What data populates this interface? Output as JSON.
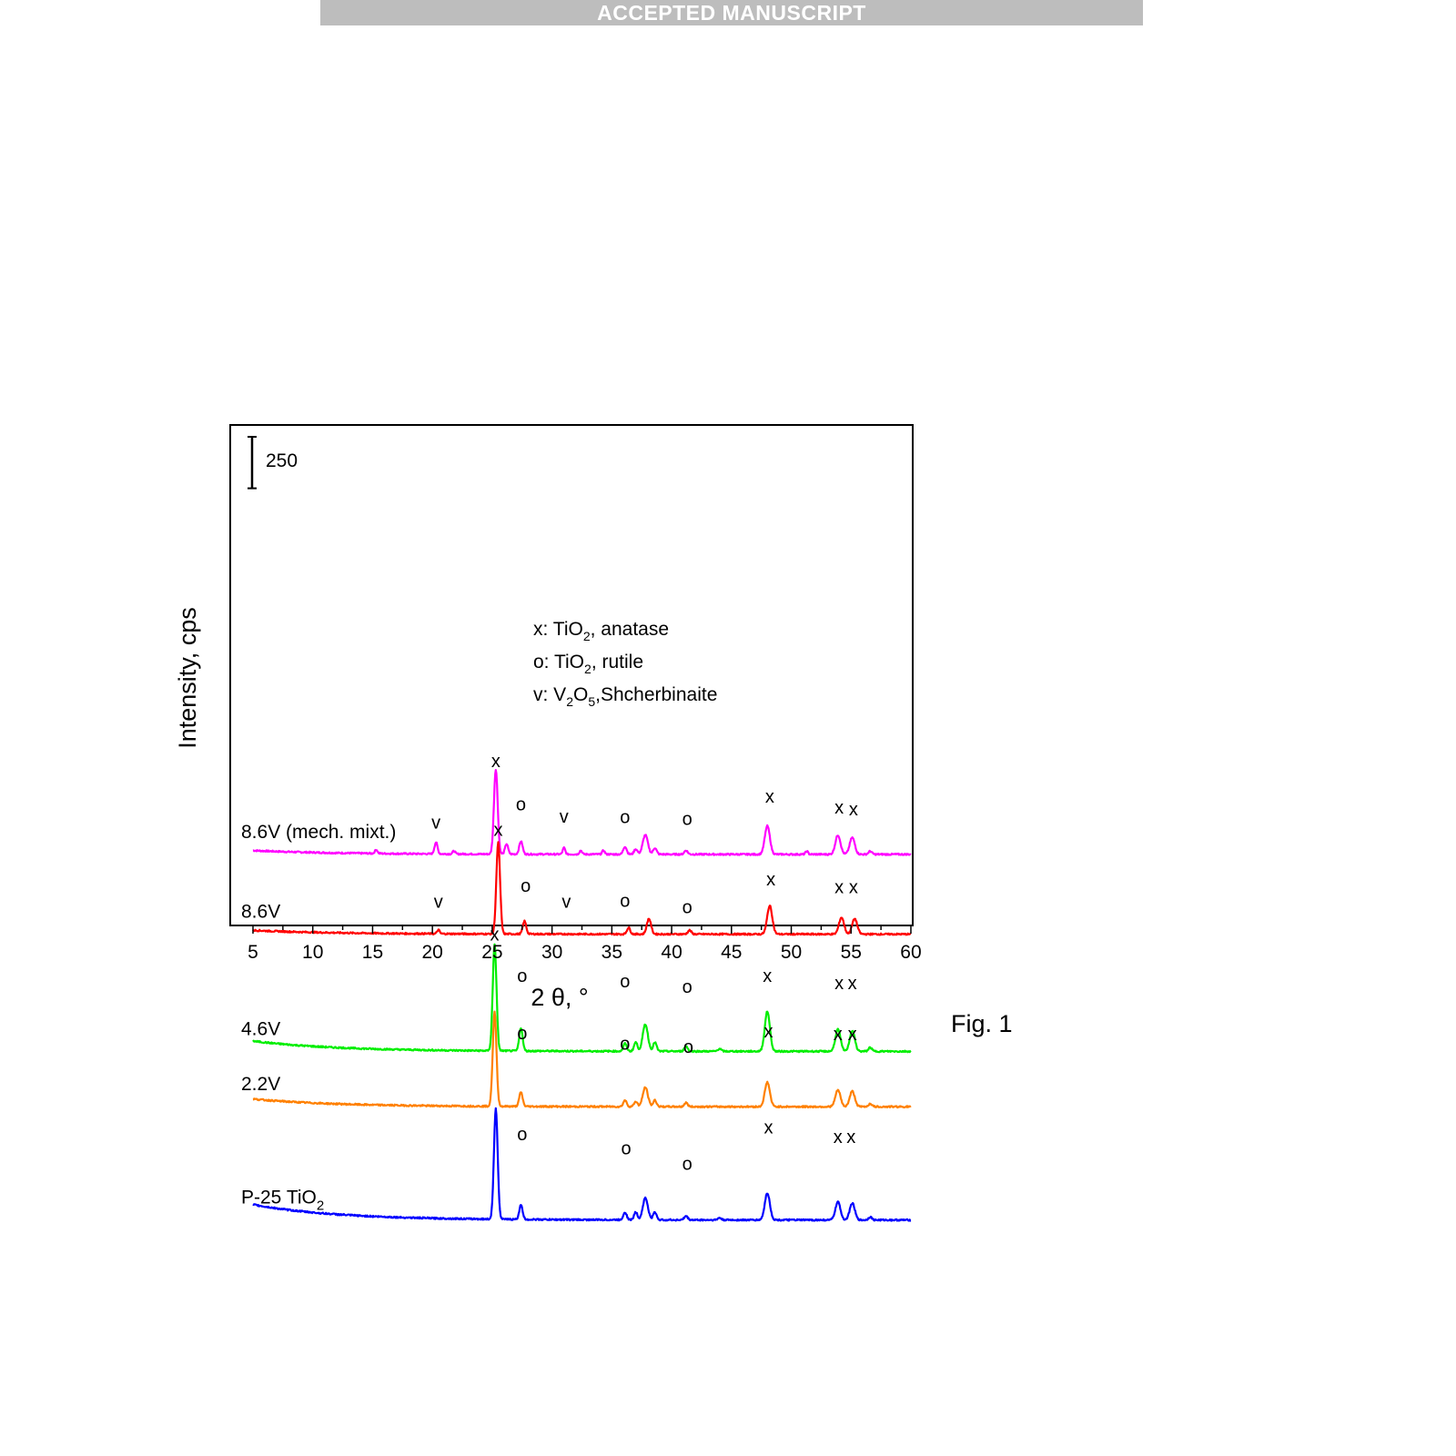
{
  "banner": "ACCEPTED MANUSCRIPT",
  "figure_caption": "Fig. 1",
  "chart_data": {
    "type": "line",
    "title": "",
    "xlabel": "2 θ, °",
    "ylabel": "Intensity, cps",
    "xlim": [
      3,
      60
    ],
    "xticks": [
      5,
      10,
      15,
      20,
      25,
      30,
      35,
      40,
      45,
      50,
      55,
      60
    ],
    "scale_bar": {
      "label": "250",
      "value": 250
    },
    "legend": [
      {
        "symbol": "x",
        "text": "TiO",
        "sub": "2",
        "rest": ", anatase"
      },
      {
        "symbol": "o",
        "text": "TiO",
        "sub": "2",
        "rest": ", rutile"
      },
      {
        "symbol": "v",
        "text": "V",
        "sub": "2",
        "mid": "O",
        "sub2": "5",
        "rest": ",Shcherbinaite"
      }
    ],
    "series": [
      {
        "name": "8.6V (mech. mixt.)",
        "color": "#ff00ff",
        "baseline": 255,
        "bg": 15,
        "peaks": [
          [
            15.3,
            15,
            0.15
          ],
          [
            20.3,
            45,
            0.18
          ],
          [
            21.8,
            12,
            0.15
          ],
          [
            25.3,
            330,
            0.22
          ],
          [
            26.2,
            40,
            0.18
          ],
          [
            27.4,
            50,
            0.2
          ],
          [
            31.0,
            25,
            0.15
          ],
          [
            32.4,
            15,
            0.15
          ],
          [
            34.3,
            15,
            0.15
          ],
          [
            36.1,
            30,
            0.2
          ],
          [
            37.0,
            20,
            0.2
          ],
          [
            37.8,
            75,
            0.3
          ],
          [
            38.6,
            25,
            0.2
          ],
          [
            41.2,
            15,
            0.2
          ],
          [
            48.0,
            110,
            0.3
          ],
          [
            51.3,
            12,
            0.15
          ],
          [
            53.9,
            75,
            0.3
          ],
          [
            55.1,
            65,
            0.3
          ],
          [
            56.6,
            12,
            0.2
          ]
        ],
        "markers": [
          [
            "v",
            20.3,
            355
          ],
          [
            "x",
            25.3,
            593
          ],
          [
            "o",
            27.4,
            425
          ],
          [
            "v",
            31.0,
            378
          ],
          [
            "o",
            36.1,
            377
          ],
          [
            "o",
            41.3,
            370
          ],
          [
            "x",
            48.2,
            455
          ],
          [
            "x",
            54.0,
            414
          ],
          [
            "x",
            55.2,
            407
          ]
        ]
      },
      {
        "name": "8.6V",
        "color": "#ff0000",
        "baseline": -55,
        "bg": 15,
        "peaks": [
          [
            20.5,
            15,
            0.15
          ],
          [
            25.5,
            355,
            0.22
          ],
          [
            27.7,
            50,
            0.2
          ],
          [
            36.4,
            25,
            0.2
          ],
          [
            38.1,
            60,
            0.25
          ],
          [
            41.5,
            15,
            0.2
          ],
          [
            48.2,
            110,
            0.3
          ],
          [
            54.2,
            65,
            0.3
          ],
          [
            55.3,
            60,
            0.3
          ]
        ],
        "markers": [
          [
            "v",
            20.5,
            47
          ],
          [
            "x",
            25.5,
            327
          ],
          [
            "o",
            27.8,
            110
          ],
          [
            "v",
            31.2,
            47
          ],
          [
            "o",
            36.1,
            52
          ],
          [
            "o",
            41.3,
            27
          ],
          [
            "x",
            48.3,
            135
          ],
          [
            "x",
            54.0,
            105
          ],
          [
            "x",
            55.2,
            105
          ]
        ]
      },
      {
        "name": "4.6V",
        "color": "#00ee00",
        "baseline": -510,
        "bg": 40,
        "peaks": [
          [
            25.2,
            415,
            0.22
          ],
          [
            27.4,
            90,
            0.2
          ],
          [
            36.1,
            30,
            0.2
          ],
          [
            37.0,
            35,
            0.2
          ],
          [
            37.8,
            105,
            0.3
          ],
          [
            38.6,
            35,
            0.2
          ],
          [
            41.2,
            20,
            0.2
          ],
          [
            44.0,
            10,
            0.2
          ],
          [
            48.0,
            155,
            0.3
          ],
          [
            53.9,
            85,
            0.3
          ],
          [
            55.1,
            80,
            0.3
          ],
          [
            56.6,
            15,
            0.2
          ]
        ],
        "markers": [
          [
            "x",
            25.2,
            -80
          ],
          [
            "o",
            27.5,
            -240
          ],
          [
            "o",
            36.1,
            -262
          ],
          [
            "o",
            41.3,
            -282
          ],
          [
            "x",
            48.0,
            -240
          ],
          [
            "x",
            54.0,
            -268
          ],
          [
            "x",
            55.1,
            -268
          ]
        ]
      },
      {
        "name": "2.2V",
        "color": "#ff8000",
        "baseline": -725,
        "bg": 30,
        "peaks": [
          [
            25.2,
            365,
            0.22
          ],
          [
            27.4,
            55,
            0.2
          ],
          [
            36.1,
            25,
            0.2
          ],
          [
            37.0,
            20,
            0.2
          ],
          [
            37.8,
            75,
            0.3
          ],
          [
            38.6,
            25,
            0.2
          ],
          [
            41.2,
            15,
            0.2
          ],
          [
            48.0,
            95,
            0.3
          ],
          [
            53.9,
            65,
            0.3
          ],
          [
            55.1,
            60,
            0.3
          ],
          [
            56.6,
            12,
            0.2
          ]
        ],
        "markers": [
          [
            "o",
            27.5,
            -463
          ],
          [
            "o",
            36.1,
            -503
          ],
          [
            "o",
            41.4,
            -516
          ],
          [
            "x",
            48.1,
            -455
          ],
          [
            "x",
            53.9,
            -467
          ],
          [
            "x",
            55.1,
            -467
          ]
        ]
      },
      {
        "name": "P-25 TiO",
        "name_sub": "2",
        "color": "#0000ff",
        "baseline": -1165,
        "bg": 60,
        "peaks": [
          [
            25.3,
            430,
            0.22
          ],
          [
            27.4,
            55,
            0.2
          ],
          [
            36.1,
            30,
            0.2
          ],
          [
            37.0,
            30,
            0.2
          ],
          [
            37.8,
            85,
            0.3
          ],
          [
            38.6,
            30,
            0.2
          ],
          [
            41.2,
            15,
            0.2
          ],
          [
            44.0,
            8,
            0.2
          ],
          [
            48.0,
            105,
            0.3
          ],
          [
            53.9,
            70,
            0.3
          ],
          [
            55.1,
            65,
            0.3
          ],
          [
            56.6,
            12,
            0.2
          ]
        ],
        "markers": [
          [
            "o",
            27.5,
            -855
          ],
          [
            "o",
            36.2,
            -910
          ],
          [
            "o",
            41.3,
            -970
          ],
          [
            "x",
            48.1,
            -828
          ],
          [
            "x",
            53.9,
            -865
          ],
          [
            "x",
            55.0,
            -865
          ]
        ]
      }
    ]
  }
}
